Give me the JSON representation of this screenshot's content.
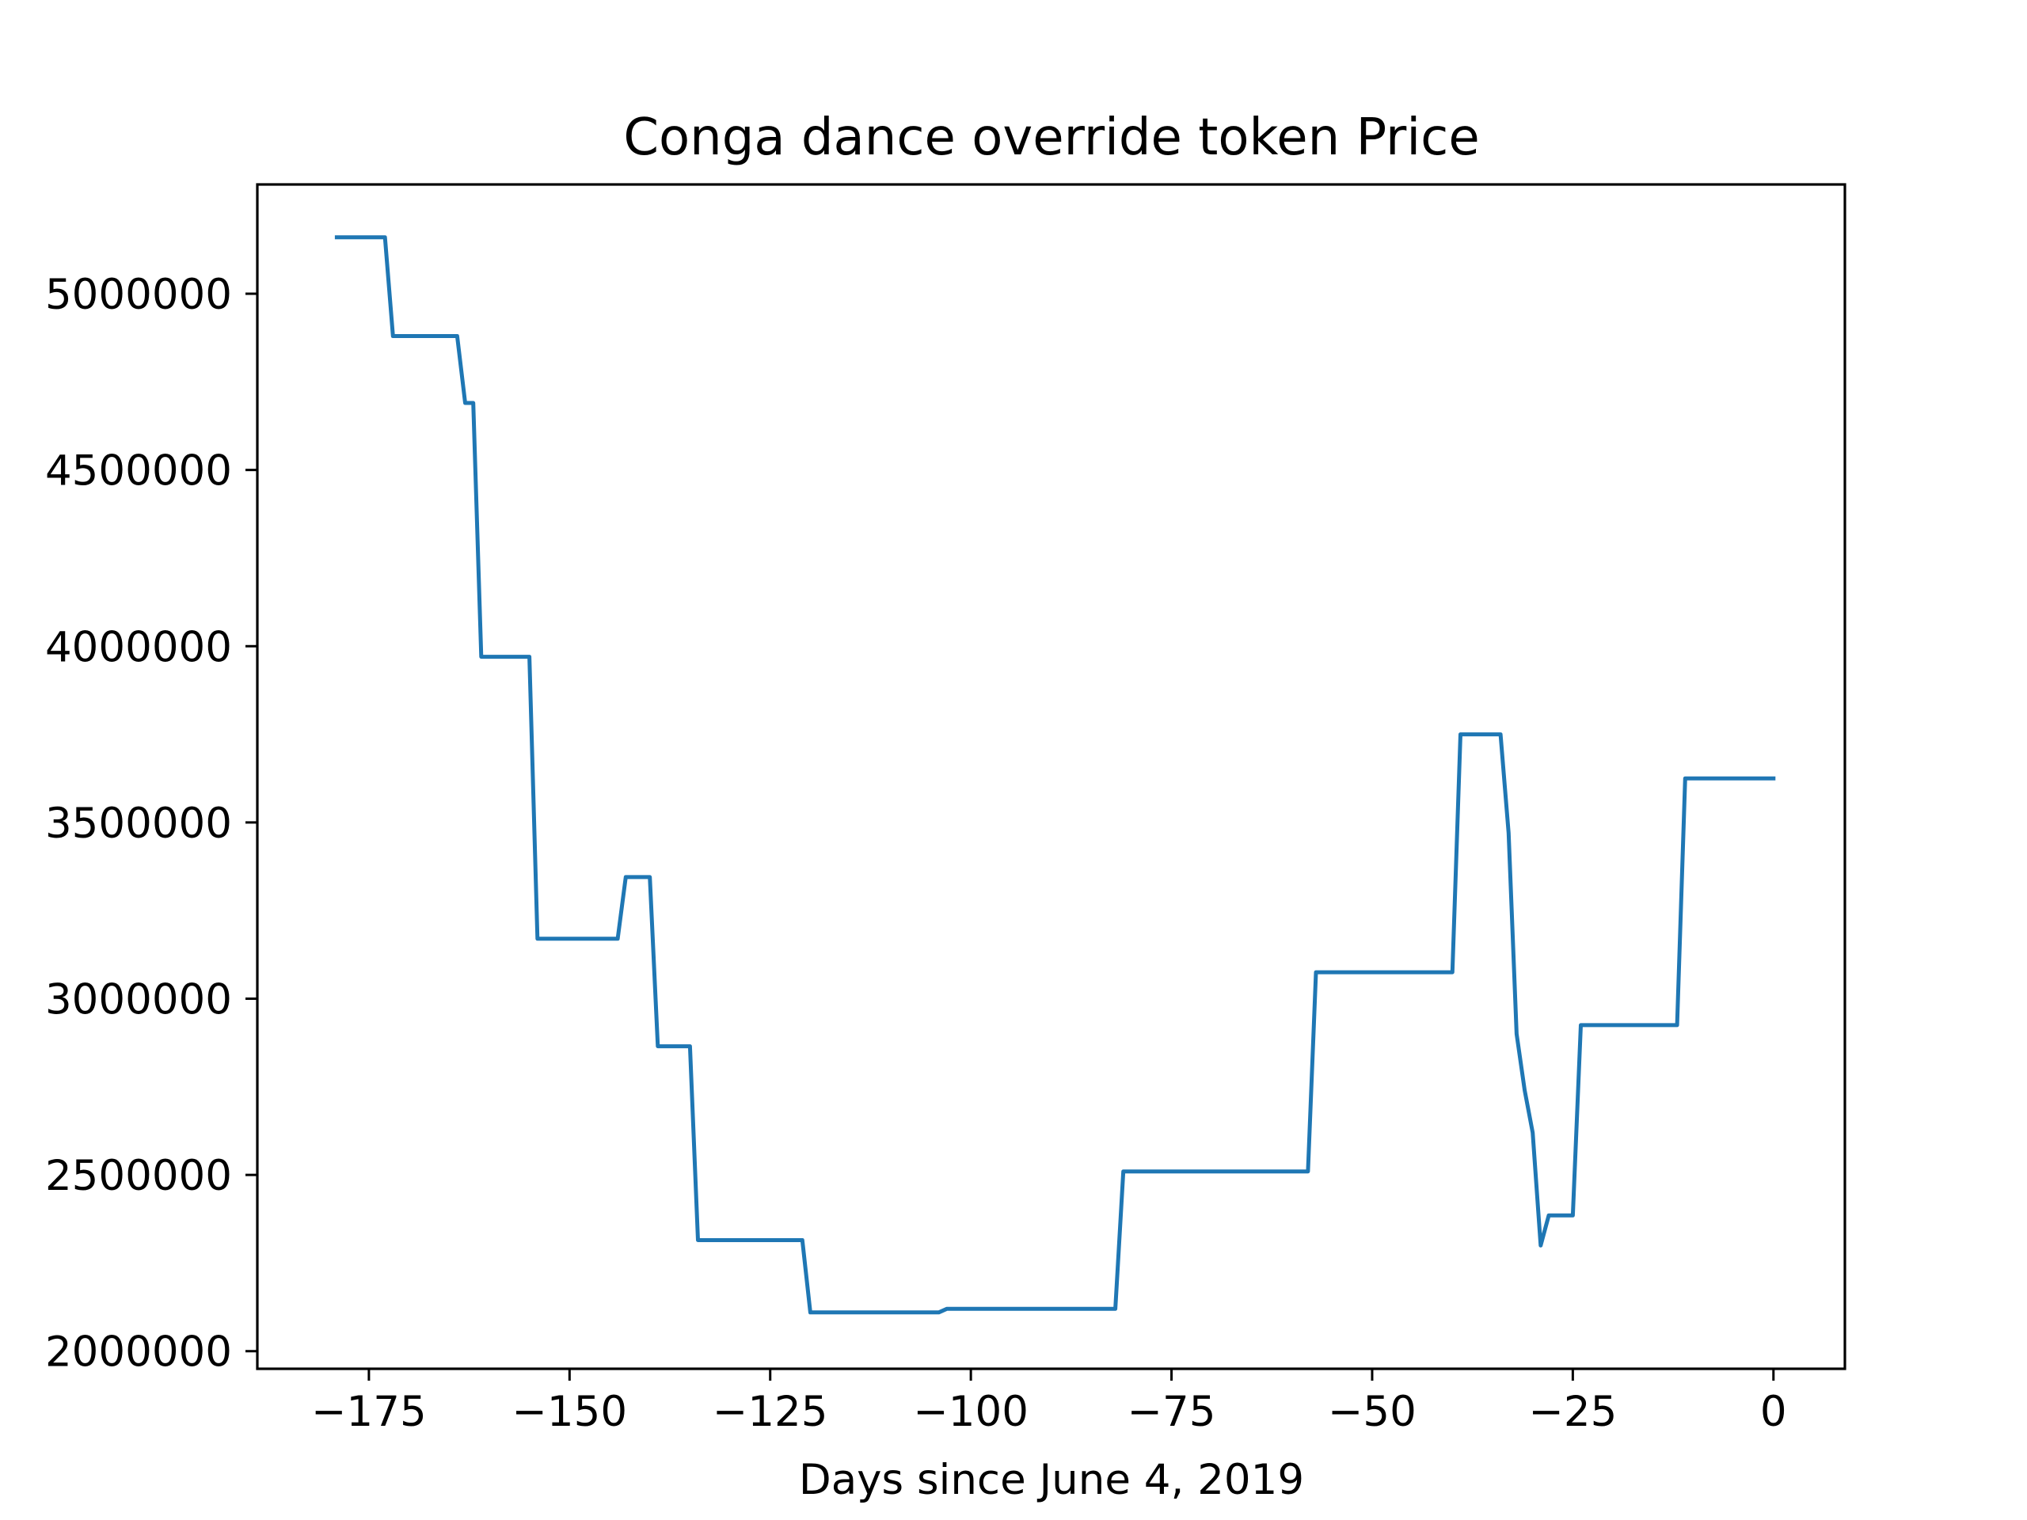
{
  "chart_data": {
    "type": "line",
    "title": "Conga dance override token Price",
    "xlabel": "Days since June 4, 2019",
    "ylabel": "",
    "xlim": [
      -188.9,
      8.9
    ],
    "ylim": [
      1950000,
      5310000
    ],
    "xticks": [
      -175,
      -150,
      -125,
      -100,
      -75,
      -50,
      -25,
      0
    ],
    "xtick_labels": [
      "−175",
      "−150",
      "−125",
      "−100",
      "−75",
      "−50",
      "−25",
      "0"
    ],
    "yticks": [
      2000000,
      2500000,
      3000000,
      3500000,
      4000000,
      4500000,
      5000000
    ],
    "ytick_labels": [
      "2000000",
      "2500000",
      "3000000",
      "3500000",
      "4000000",
      "4500000",
      "5000000"
    ],
    "grid": false,
    "legend": "none",
    "series": [
      {
        "color": "#1f77b4",
        "x": [
          -179,
          -173,
          -172,
          -164,
          -163,
          -162,
          -161,
          -155,
          -154,
          -144,
          -143,
          -140,
          -139,
          -135,
          -134,
          -121,
          -120,
          -104,
          -103,
          -82,
          -81,
          -58,
          -57,
          -40,
          -39,
          -34,
          -33,
          -32,
          -31,
          -30,
          -29,
          -28,
          -25,
          -24,
          -12,
          -11,
          0
        ],
        "y": [
          5160000,
          5160000,
          4880000,
          4880000,
          4690000,
          4690000,
          3970000,
          3970000,
          3170000,
          3170000,
          3345000,
          3345000,
          2865000,
          2865000,
          2315000,
          2315000,
          2110000,
          2110000,
          2120000,
          2120000,
          2510000,
          2510000,
          3075000,
          3075000,
          3750000,
          3750000,
          3470000,
          2900000,
          2740000,
          2620000,
          2300000,
          2385000,
          2385000,
          2925000,
          2925000,
          3625000,
          3625000
        ]
      }
    ]
  }
}
